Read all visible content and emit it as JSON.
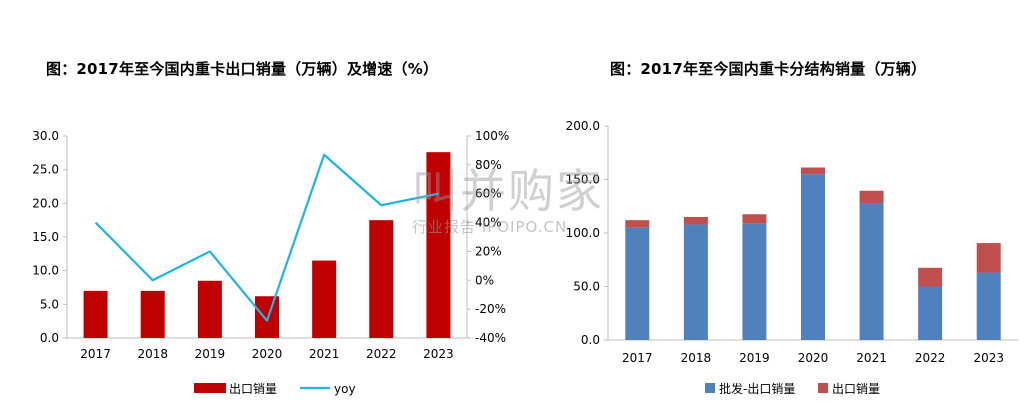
{
  "chart_data": [
    {
      "type": "bar+line",
      "title": "图：2017年至今国内重卡出口销量（万辆）及增速（%）",
      "categories": [
        "2017",
        "2018",
        "2019",
        "2020",
        "2021",
        "2022",
        "2023"
      ],
      "series": [
        {
          "name": "出口销量",
          "type": "bar",
          "axis": "left",
          "color": "#C00000",
          "values": [
            7.0,
            7.0,
            8.5,
            6.2,
            11.5,
            17.5,
            27.6
          ]
        },
        {
          "name": "yoy",
          "type": "line",
          "axis": "right",
          "color": "#1FB4E6",
          "values": [
            40,
            0,
            20,
            -28,
            87,
            52,
            60
          ]
        }
      ],
      "ylim": [
        0,
        30
      ],
      "yticks": [
        "0.0",
        "5.0",
        "10.0",
        "15.0",
        "20.0",
        "25.0",
        "30.0"
      ],
      "y2lim": [
        -40,
        100
      ],
      "y2ticks": [
        "-40%",
        "-20%",
        "0%",
        "20%",
        "40%",
        "60%",
        "80%",
        "100%"
      ],
      "legend_position": "bottom",
      "grid": false
    },
    {
      "type": "stacked-bar",
      "title": "图：2017年至今国内重卡分结构销量（万辆）",
      "categories": [
        "2017",
        "2018",
        "2019",
        "2020",
        "2021",
        "2022",
        "2023"
      ],
      "series": [
        {
          "name": "批发-出口销量",
          "color": "#4F81BD",
          "values": [
            105,
            108,
            109,
            155,
            128,
            50,
            63
          ]
        },
        {
          "name": "出口销量",
          "color": "#C0504D",
          "values": [
            7.0,
            7.0,
            8.5,
            6.2,
            11.5,
            17.5,
            27.6
          ]
        }
      ],
      "ylim": [
        0,
        200
      ],
      "yticks": [
        "0.0",
        "50.0",
        "100.0",
        "150.0",
        "200.0"
      ],
      "legend_position": "bottom",
      "grid": false
    }
  ],
  "watermark": {
    "main": "叫并购家",
    "sub": "行业报告 IPOIPO.CN"
  }
}
